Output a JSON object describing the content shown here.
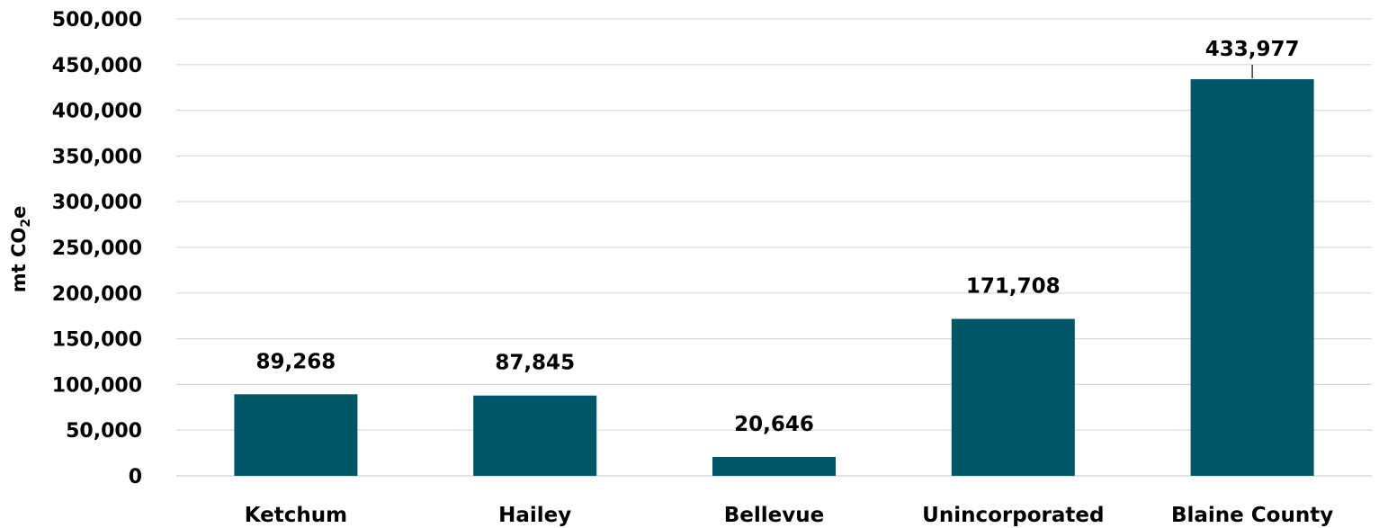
{
  "chart_data": {
    "type": "bar",
    "title": "",
    "xlabel": "",
    "ylabel": {
      "prefix": "mt CO",
      "subscript": "2",
      "suffix": "e"
    },
    "ylim": [
      0,
      500000
    ],
    "yticks": [
      0,
      50000,
      100000,
      150000,
      200000,
      250000,
      300000,
      350000,
      400000,
      450000,
      500000
    ],
    "ytick_labels": [
      "0",
      "50,000",
      "100,000",
      "150,000",
      "200,000",
      "250,000",
      "300,000",
      "350,000",
      "400,000",
      "450,000",
      "500,000"
    ],
    "categories": [
      "Ketchum",
      "Hailey",
      "Bellevue",
      "Unincorporated",
      "Blaine County"
    ],
    "values": [
      89268,
      87845,
      20646,
      171708,
      433977
    ],
    "data_labels": [
      "89,268",
      "87,845",
      "20,646",
      "171,708",
      "433,977"
    ],
    "bar_color": "#005566",
    "grid": true,
    "legend": "none"
  }
}
